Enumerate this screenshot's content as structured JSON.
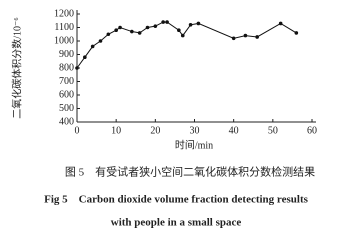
{
  "chart_data": {
    "type": "line",
    "x_label": "时间/min",
    "y_label": "二氧化碳体积分数/10⁻⁶",
    "x": [
      0,
      2,
      4,
      6,
      8,
      10,
      11,
      14,
      16,
      18,
      20,
      22,
      23,
      26,
      27,
      29,
      31,
      40,
      43,
      46,
      52,
      56
    ],
    "series": [
      {
        "name": "CO2",
        "color": "#111111",
        "values": [
          800,
          880,
          960,
          1000,
          1050,
          1080,
          1100,
          1070,
          1060,
          1100,
          1110,
          1140,
          1140,
          1080,
          1040,
          1120,
          1130,
          1020,
          1040,
          1030,
          1130,
          1060
        ]
      }
    ],
    "xlim": [
      0,
      60
    ],
    "xticks": [
      0,
      10,
      20,
      30,
      40,
      50,
      60
    ],
    "ylim": [
      400,
      1200
    ],
    "yticks": [
      400,
      500,
      600,
      700,
      800,
      900,
      1000,
      1100,
      1200
    ],
    "grid": false
  },
  "caption": [
    "图 5　有受试者狭小空间二氧化碳体积分数检测结果",
    "Fig 5　Carbon dioxide volume fraction detecting results",
    "with people in a small space"
  ]
}
